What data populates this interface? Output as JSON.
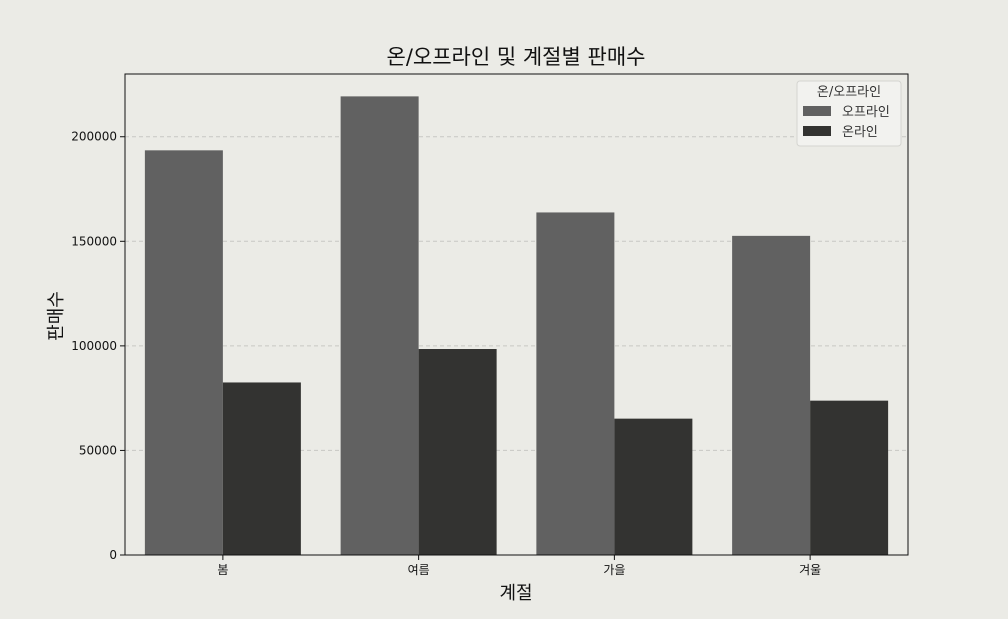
{
  "chart_data": {
    "type": "bar",
    "title": "온/오프라인 및 계절별 판매수",
    "xlabel": "계절",
    "ylabel": "판매수",
    "categories": [
      "봄",
      "여름",
      "가을",
      "겨울"
    ],
    "series": [
      {
        "name": "오프라인",
        "values": [
          193500,
          219300,
          163800,
          152600
        ],
        "color": "#616161"
      },
      {
        "name": "온라인",
        "values": [
          82500,
          98500,
          65200,
          73800
        ],
        "color": "#333331"
      }
    ],
    "ylim": [
      0,
      230000
    ],
    "yticks": [
      0,
      50000,
      100000,
      150000,
      200000
    ],
    "ytick_labels": [
      "0",
      "50000",
      "100000",
      "150000",
      "200000"
    ],
    "grid": "y-dashed",
    "legend": {
      "title": "온/오프라인",
      "placement": "top-right"
    },
    "colors": {
      "background": "#ebebe6",
      "grid": "#c8c8c4",
      "axes": "#111111"
    }
  }
}
